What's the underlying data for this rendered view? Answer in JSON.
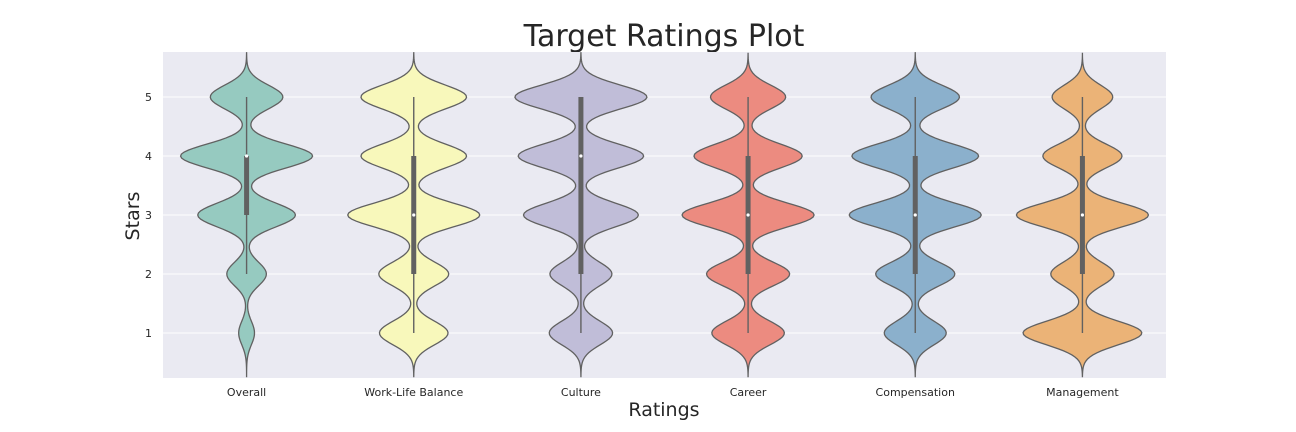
{
  "chart_data": {
    "type": "violin",
    "title": "Target Ratings Plot",
    "xlabel": "Ratings",
    "ylabel": "Stars",
    "ylim": [
      0.25,
      5.75
    ],
    "yticks": [
      1,
      2,
      3,
      4,
      5
    ],
    "grid": true,
    "background": "#eaeaf2",
    "categories": [
      "Overall",
      "Work-Life Balance",
      "Culture",
      "Career",
      "Compensation",
      "Management"
    ],
    "colors": [
      "#96cac0",
      "#f8f8bb",
      "#c0bdd8",
      "#ec8b80",
      "#8bb0cc",
      "#ebb377"
    ],
    "series": [
      {
        "category": "Overall",
        "q1": 3,
        "median": 4,
        "q3": 4,
        "whisker_low": 2,
        "whisker_high": 5,
        "min": 1,
        "max": 5,
        "density": [
          0.12,
          0.3,
          0.74,
          1.0,
          0.55
        ]
      },
      {
        "category": "Work-Life Balance",
        "q1": 2,
        "median": 3,
        "q3": 4,
        "whisker_low": 1,
        "whisker_high": 5,
        "min": 1,
        "max": 5,
        "density": [
          0.52,
          0.53,
          1.0,
          0.8,
          0.8
        ]
      },
      {
        "category": "Culture",
        "q1": 2,
        "median": 4,
        "q3": 5,
        "whisker_low": 1,
        "whisker_high": 5,
        "min": 1,
        "max": 5,
        "density": [
          0.48,
          0.47,
          0.87,
          0.95,
          1.0
        ]
      },
      {
        "category": "Career",
        "q1": 2,
        "median": 3,
        "q3": 4,
        "whisker_low": 1,
        "whisker_high": 5,
        "min": 1,
        "max": 5,
        "density": [
          0.55,
          0.63,
          1.0,
          0.82,
          0.57
        ]
      },
      {
        "category": "Compensation",
        "q1": 2,
        "median": 3,
        "q3": 4,
        "whisker_low": 1,
        "whisker_high": 5,
        "min": 1,
        "max": 5,
        "density": [
          0.47,
          0.6,
          1.0,
          0.96,
          0.67
        ]
      },
      {
        "category": "Management",
        "q1": 2,
        "median": 3,
        "q3": 4,
        "whisker_low": 1,
        "whisker_high": 5,
        "min": 1,
        "max": 5,
        "density": [
          0.9,
          0.48,
          1.0,
          0.6,
          0.46
        ]
      }
    ]
  }
}
